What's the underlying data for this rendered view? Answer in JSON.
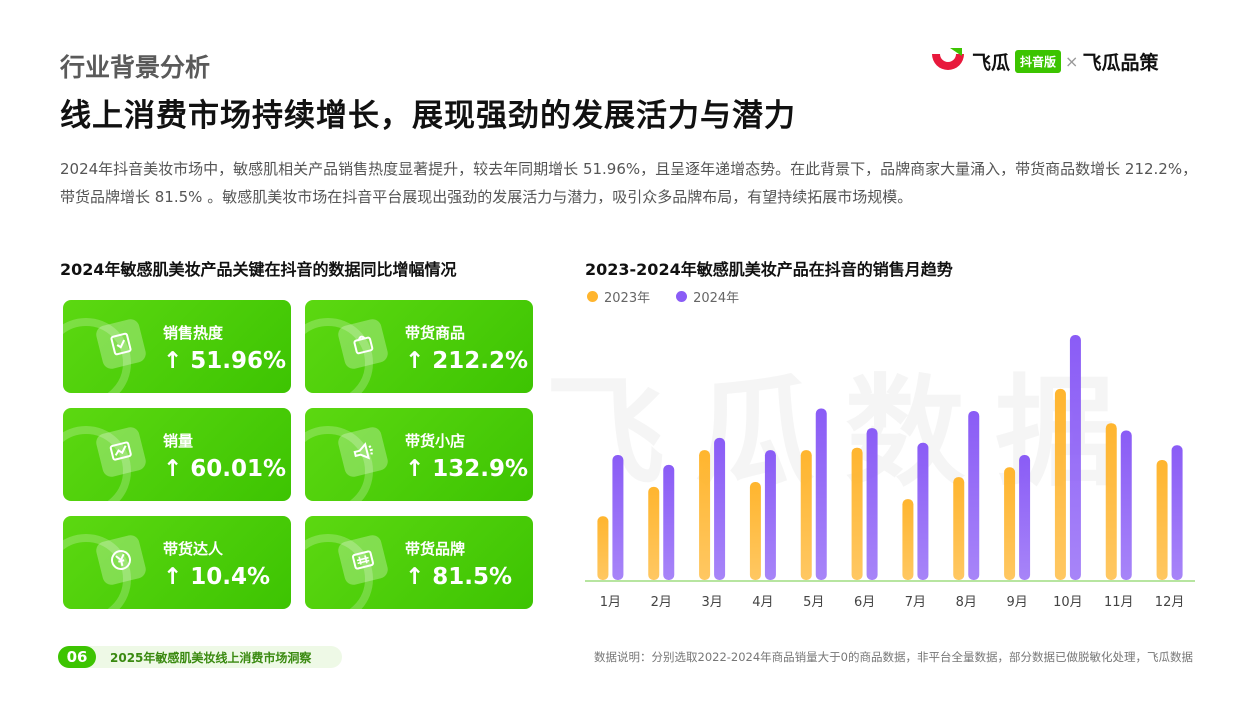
{
  "header": {
    "section": "行业背景分析",
    "title": "线上消费市场持续增长，展现强劲的发展活力与潜力",
    "intro": "2024年抖音美妆市场中，敏感肌相关产品销售热度显著提升，较去年同期增长 51.96%，且呈逐年递增态势。在此背景下，品牌商家大量涌入，带货商品数增长 212.2%，带货品牌增长 81.5% 。敏感肌美妆市场在抖音平台展现出强劲的发展活力与潜力，吸引众多品牌布局，有望持续拓展市场规模。"
  },
  "logo": {
    "brand": "飞瓜",
    "badge": "抖音版",
    "separator": "×",
    "partner": "飞瓜品策"
  },
  "watermark": "飞瓜数据",
  "left_panel": {
    "title": "2024年敏感肌美妆产品关键在抖音的数据同比增幅情况",
    "cards": [
      {
        "label": "销售热度",
        "value": "↑ 51.96%",
        "icon": "receipt-icon"
      },
      {
        "label": "带货商品",
        "value": "↑ 212.2%",
        "icon": "shopping-bag-icon"
      },
      {
        "label": "销量",
        "value": "↑ 60.01%",
        "icon": "trend-chart-icon"
      },
      {
        "label": "带货小店",
        "value": "↑ 132.9%",
        "icon": "megaphone-icon"
      },
      {
        "label": "带货达人",
        "value": "↑ 10.4%",
        "icon": "yuan-coin-icon"
      },
      {
        "label": "带货品牌",
        "value": "↑ 81.5%",
        "icon": "brand-tag-icon"
      }
    ]
  },
  "right_panel": {
    "title": "2023-2024年敏感肌美妆产品在抖音的销售月趋势"
  },
  "chart_data": {
    "type": "bar",
    "title": "2023-2024年敏感肌美妆产品在抖音的销售月趋势",
    "categories": [
      "1月",
      "2月",
      "3月",
      "4月",
      "5月",
      "6月",
      "7月",
      "8月",
      "9月",
      "10月",
      "11月",
      "12月"
    ],
    "series": [
      {
        "name": "2023年",
        "color": "#ffb52e",
        "values": [
          26,
          38,
          53,
          40,
          53,
          54,
          33,
          42,
          46,
          78,
          64,
          49
        ]
      },
      {
        "name": "2024年",
        "color": "#8a5cf6",
        "values": [
          51,
          47,
          58,
          53,
          70,
          62,
          56,
          69,
          51,
          100,
          61,
          55
        ]
      }
    ],
    "ylim": [
      0,
      100
    ],
    "xlabel": "",
    "ylabel": "",
    "grid": false,
    "legend": "top-left",
    "baseline_color": "#b7e5a0"
  },
  "footer": {
    "page": "06",
    "report": "2025年敏感肌美妆线上消费市场洞察",
    "source": "数据说明：分别选取2022-2024年商品销量大于0的商品数据，非平台全量数据，部分数据已做脱敏化处理，飞瓜数据"
  }
}
